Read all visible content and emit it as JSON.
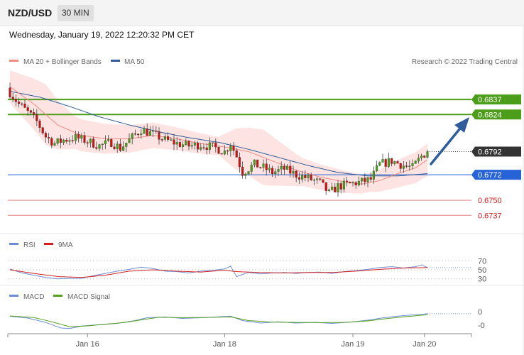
{
  "header": {
    "pair": "NZD/USD",
    "timeframe": "30 MIN",
    "datetime": "Wednesday, January 19, 2022 12:20:32 PM CET"
  },
  "colors": {
    "ma20": "#f28b82",
    "ma50": "#2f5d9a",
    "band_fill": "#fde3e1",
    "resistance": "#4c9e1a",
    "support": "#2563d6",
    "weak_support": "#e8a0a0",
    "current": "#333333",
    "candle_up": "#4c9e1a",
    "candle_down": "#cc1111",
    "rsi": "#6b8fd6",
    "rsi_ma": "#d42020",
    "macd": "#6b8fd6",
    "macd_signal": "#55a01e",
    "arrow": "#2f5d9a"
  },
  "chart_data": [
    {
      "type": "candlestick",
      "title": "NZD/USD",
      "legend": [
        {
          "key": "ma20",
          "label": "MA 20 + Bollinger Bands"
        },
        {
          "key": "ma50",
          "label": "MA 50"
        }
      ],
      "legend_position": "top-left",
      "credit": "Research © 2022 Trading Central",
      "x_ticks": [
        "Jan 16",
        "Jan 18",
        "Jan 19",
        "Jan 20"
      ],
      "x_tick_positions": [
        26,
        72,
        115,
        139
      ],
      "ylim": [
        0.6728,
        0.6864
      ],
      "levels": [
        {
          "value": 0.6837,
          "label": "0.6837",
          "kind": "resistance"
        },
        {
          "value": 0.6824,
          "label": "0.6824",
          "kind": "resistance"
        },
        {
          "value": 0.6792,
          "label": "0.6792",
          "kind": "current"
        },
        {
          "value": 0.6772,
          "label": "0.6772",
          "kind": "support"
        },
        {
          "value": 0.675,
          "label": "0.6750",
          "kind": "weak_support"
        },
        {
          "value": 0.6737,
          "label": "0.6737",
          "kind": "weak_support"
        }
      ],
      "price_anchors": [
        [
          0,
          0.6843
        ],
        [
          3,
          0.6833
        ],
        [
          6,
          0.6826
        ],
        [
          9,
          0.6818
        ],
        [
          12,
          0.6805
        ],
        [
          15,
          0.6799
        ],
        [
          18,
          0.6802
        ],
        [
          22,
          0.6804
        ],
        [
          26,
          0.6801
        ],
        [
          30,
          0.6797
        ],
        [
          34,
          0.68
        ],
        [
          37,
          0.6795
        ],
        [
          40,
          0.6802
        ],
        [
          44,
          0.6811
        ],
        [
          48,
          0.6807
        ],
        [
          52,
          0.6802
        ],
        [
          56,
          0.6799
        ],
        [
          60,
          0.6797
        ],
        [
          64,
          0.6798
        ],
        [
          68,
          0.6796
        ],
        [
          72,
          0.6792
        ],
        [
          74,
          0.6799
        ],
        [
          76,
          0.6788
        ],
        [
          78,
          0.6774
        ],
        [
          82,
          0.6781
        ],
        [
          85,
          0.6778
        ],
        [
          88,
          0.6774
        ],
        [
          92,
          0.6777
        ],
        [
          96,
          0.6772
        ],
        [
          100,
          0.6769
        ],
        [
          104,
          0.6765
        ],
        [
          107,
          0.6756
        ],
        [
          110,
          0.6762
        ],
        [
          114,
          0.6764
        ],
        [
          118,
          0.6766
        ],
        [
          121,
          0.6768
        ],
        [
          124,
          0.6781
        ],
        [
          128,
          0.6784
        ],
        [
          132,
          0.678
        ],
        [
          135,
          0.6778
        ],
        [
          138,
          0.6788
        ],
        [
          140,
          0.6792
        ]
      ],
      "ma20_anchors": [
        [
          0,
          0.6848
        ],
        [
          8,
          0.6833
        ],
        [
          16,
          0.6815
        ],
        [
          24,
          0.6806
        ],
        [
          32,
          0.6803
        ],
        [
          40,
          0.6803
        ],
        [
          48,
          0.6806
        ],
        [
          56,
          0.6803
        ],
        [
          64,
          0.6799
        ],
        [
          72,
          0.6796
        ],
        [
          80,
          0.6792
        ],
        [
          88,
          0.6784
        ],
        [
          96,
          0.6776
        ],
        [
          104,
          0.677
        ],
        [
          112,
          0.6766
        ],
        [
          118,
          0.6764
        ],
        [
          124,
          0.6767
        ],
        [
          130,
          0.6773
        ],
        [
          136,
          0.6778
        ],
        [
          140,
          0.6785
        ]
      ],
      "ma50_anchors": [
        [
          0,
          0.6844
        ],
        [
          10,
          0.6839
        ],
        [
          20,
          0.6831
        ],
        [
          30,
          0.6822
        ],
        [
          40,
          0.6815
        ],
        [
          50,
          0.6809
        ],
        [
          60,
          0.6804
        ],
        [
          70,
          0.68
        ],
        [
          80,
          0.6794
        ],
        [
          90,
          0.6787
        ],
        [
          100,
          0.678
        ],
        [
          110,
          0.6774
        ],
        [
          120,
          0.6771
        ],
        [
          130,
          0.6771
        ],
        [
          140,
          0.6773
        ]
      ],
      "band_width_anchors": [
        [
          0,
          0.0014
        ],
        [
          12,
          0.0026
        ],
        [
          22,
          0.0014
        ],
        [
          40,
          0.0012
        ],
        [
          55,
          0.001
        ],
        [
          70,
          0.0008
        ],
        [
          76,
          0.0018
        ],
        [
          85,
          0.0024
        ],
        [
          98,
          0.0012
        ],
        [
          110,
          0.001
        ],
        [
          120,
          0.0008
        ],
        [
          130,
          0.0012
        ],
        [
          140,
          0.0014
        ]
      ],
      "candle_count": 141
    },
    {
      "type": "line",
      "title": "RSI",
      "legend": [
        {
          "key": "rsi",
          "label": "RSI"
        },
        {
          "key": "rsi_ma",
          "label": "9MA"
        }
      ],
      "y_ticks": [
        70,
        50,
        30
      ],
      "ylim": [
        20,
        80
      ],
      "rsi_anchors": [
        [
          0,
          52
        ],
        [
          4,
          43
        ],
        [
          8,
          38
        ],
        [
          12,
          33
        ],
        [
          16,
          30
        ],
        [
          20,
          31
        ],
        [
          24,
          31
        ],
        [
          28,
          37
        ],
        [
          32,
          42
        ],
        [
          36,
          47
        ],
        [
          40,
          51
        ],
        [
          44,
          56
        ],
        [
          48,
          53
        ],
        [
          52,
          47
        ],
        [
          56,
          46
        ],
        [
          60,
          43
        ],
        [
          64,
          47
        ],
        [
          68,
          49
        ],
        [
          72,
          52
        ],
        [
          74,
          58
        ],
        [
          76,
          35
        ],
        [
          80,
          44
        ],
        [
          84,
          41
        ],
        [
          88,
          43
        ],
        [
          92,
          44
        ],
        [
          96,
          42
        ],
        [
          100,
          44
        ],
        [
          104,
          45
        ],
        [
          108,
          42
        ],
        [
          112,
          46
        ],
        [
          116,
          48
        ],
        [
          120,
          51
        ],
        [
          124,
          55
        ],
        [
          128,
          57
        ],
        [
          132,
          54
        ],
        [
          136,
          57
        ],
        [
          138,
          61
        ],
        [
          140,
          55
        ]
      ],
      "rsi_ma_anchors": [
        [
          0,
          50
        ],
        [
          8,
          42
        ],
        [
          16,
          35
        ],
        [
          24,
          33
        ],
        [
          32,
          38
        ],
        [
          40,
          47
        ],
        [
          48,
          50
        ],
        [
          56,
          47
        ],
        [
          64,
          45
        ],
        [
          72,
          49
        ],
        [
          76,
          46
        ],
        [
          84,
          44
        ],
        [
          92,
          43
        ],
        [
          100,
          44
        ],
        [
          108,
          44
        ],
        [
          116,
          47
        ],
        [
          124,
          51
        ],
        [
          132,
          54
        ],
        [
          140,
          55
        ]
      ]
    },
    {
      "type": "line",
      "title": "MACD",
      "legend": [
        {
          "key": "macd",
          "label": "MACD"
        },
        {
          "key": "macd_signal",
          "label": "MACD Signal"
        }
      ],
      "y_ticks": [
        "0",
        "-0"
      ],
      "ylim": [
        -1.3,
        1.0
      ],
      "macd_anchors": [
        [
          0,
          0.0
        ],
        [
          6,
          -0.15
        ],
        [
          12,
          -0.5
        ],
        [
          17,
          -0.95
        ],
        [
          20,
          -1.0
        ],
        [
          24,
          -0.8
        ],
        [
          30,
          -0.68
        ],
        [
          36,
          -0.58
        ],
        [
          42,
          -0.35
        ],
        [
          46,
          -0.12
        ],
        [
          52,
          -0.06
        ],
        [
          58,
          -0.18
        ],
        [
          64,
          -0.12
        ],
        [
          70,
          -0.05
        ],
        [
          74,
          0.0
        ],
        [
          78,
          -0.35
        ],
        [
          84,
          -0.55
        ],
        [
          90,
          -0.45
        ],
        [
          96,
          -0.55
        ],
        [
          102,
          -0.5
        ],
        [
          108,
          -0.58
        ],
        [
          114,
          -0.48
        ],
        [
          120,
          -0.32
        ],
        [
          126,
          -0.1
        ],
        [
          132,
          0.05
        ],
        [
          136,
          0.12
        ],
        [
          140,
          0.2
        ]
      ],
      "macd_signal_anchors": [
        [
          0,
          0.02
        ],
        [
          8,
          -0.1
        ],
        [
          14,
          -0.45
        ],
        [
          20,
          -0.85
        ],
        [
          26,
          -0.78
        ],
        [
          32,
          -0.65
        ],
        [
          38,
          -0.52
        ],
        [
          44,
          -0.3
        ],
        [
          50,
          -0.08
        ],
        [
          58,
          -0.12
        ],
        [
          66,
          -0.1
        ],
        [
          74,
          -0.05
        ],
        [
          80,
          -0.35
        ],
        [
          88,
          -0.48
        ],
        [
          96,
          -0.5
        ],
        [
          104,
          -0.52
        ],
        [
          112,
          -0.5
        ],
        [
          120,
          -0.38
        ],
        [
          126,
          -0.2
        ],
        [
          132,
          -0.05
        ],
        [
          140,
          0.12
        ]
      ]
    }
  ]
}
